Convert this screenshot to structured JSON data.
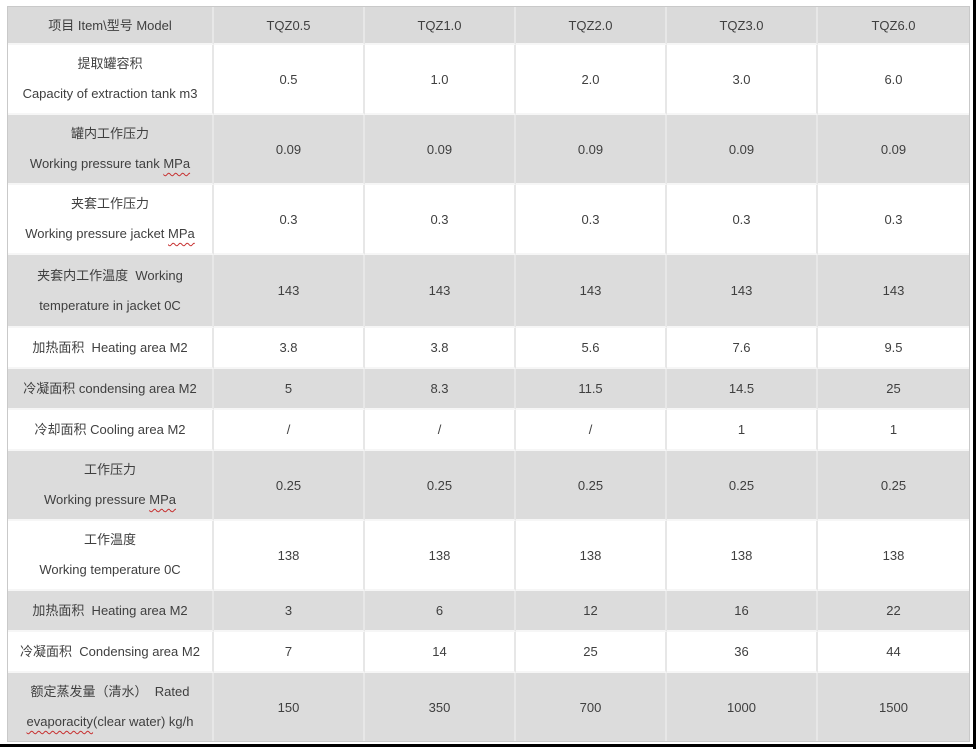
{
  "colors": {
    "row_shaded": "#dcdcdc",
    "row_plain": "#ffffff",
    "header_background": "#dadada",
    "text": "#3f3f3f",
    "grid_vertical": "#e7e7e7",
    "grid_horizontal": "#f6f6f6",
    "table_border": "#c9c9c9",
    "spellcheck_underline": "#c62f2f",
    "frame_edge": "#000000"
  },
  "table": {
    "columns": [
      "项目 Item\\型号 Model",
      "TQZ0.5",
      "TQZ1.0",
      "TQZ2.0",
      "TQZ3.0",
      "TQZ6.0"
    ],
    "rows": [
      {
        "lines": [
          [
            {
              "t": "提取罐容积"
            }
          ],
          [
            {
              "t": "Capacity of extraction tank m3"
            }
          ]
        ],
        "values": [
          "0.5",
          "1.0",
          "2.0",
          "3.0",
          "6.0"
        ],
        "shaded": false
      },
      {
        "lines": [
          [
            {
              "t": "罐内工作压力"
            }
          ],
          [
            {
              "t": "Working pressure tank "
            },
            {
              "t": "MPa",
              "wavy": true
            }
          ]
        ],
        "values": [
          "0.09",
          "0.09",
          "0.09",
          "0.09",
          "0.09"
        ],
        "shaded": true
      },
      {
        "lines": [
          [
            {
              "t": "夹套工作压力"
            }
          ],
          [
            {
              "t": "Working pressure jacket "
            },
            {
              "t": "MPa",
              "wavy": true
            }
          ]
        ],
        "values": [
          "0.3",
          "0.3",
          "0.3",
          "0.3",
          "0.3"
        ],
        "shaded": false
      },
      {
        "lines": [
          [
            {
              "t": "夹套内工作温度  Working"
            }
          ],
          [
            {
              "t": "temperature in jacket 0C"
            }
          ]
        ],
        "values": [
          "143",
          "143",
          "143",
          "143",
          "143"
        ],
        "shaded": true
      },
      {
        "lines": [
          [
            {
              "t": "加热面积  Heating area M2"
            }
          ]
        ],
        "values": [
          "3.8",
          "3.8",
          "5.6",
          "7.6",
          "9.5"
        ],
        "shaded": false
      },
      {
        "lines": [
          [
            {
              "t": "冷凝面积 condensing area M2"
            }
          ]
        ],
        "values": [
          "5",
          "8.3",
          "11.5",
          "14.5",
          "25"
        ],
        "shaded": true
      },
      {
        "lines": [
          [
            {
              "t": "冷却面积 Cooling area M2"
            }
          ]
        ],
        "values": [
          "/",
          "/",
          "/",
          "1",
          "1"
        ],
        "shaded": false
      },
      {
        "lines": [
          [
            {
              "t": "工作压力"
            }
          ],
          [
            {
              "t": "Working pressure "
            },
            {
              "t": "MPa",
              "wavy": true
            }
          ]
        ],
        "values": [
          "0.25",
          "0.25",
          "0.25",
          "0.25",
          "0.25"
        ],
        "shaded": true
      },
      {
        "lines": [
          [
            {
              "t": "工作温度"
            }
          ],
          [
            {
              "t": "Working temperature 0C"
            }
          ]
        ],
        "values": [
          "138",
          "138",
          "138",
          "138",
          "138"
        ],
        "shaded": false
      },
      {
        "lines": [
          [
            {
              "t": "加热面积  Heating area M2"
            }
          ]
        ],
        "values": [
          "3",
          "6",
          "12",
          "16",
          "22"
        ],
        "shaded": true
      },
      {
        "lines": [
          [
            {
              "t": "冷凝面积  Condensing area M2"
            }
          ]
        ],
        "values": [
          "7",
          "14",
          "25",
          "36",
          "44"
        ],
        "shaded": false
      },
      {
        "lines": [
          [
            {
              "t": "额定蒸发量（清水）  Rated"
            }
          ],
          [
            {
              "t": "evaporacity",
              "wavy": true
            },
            {
              "t": "(clear water) kg/h"
            }
          ]
        ],
        "values": [
          "150",
          "350",
          "700",
          "1000",
          "1500"
        ],
        "shaded": true
      }
    ]
  }
}
